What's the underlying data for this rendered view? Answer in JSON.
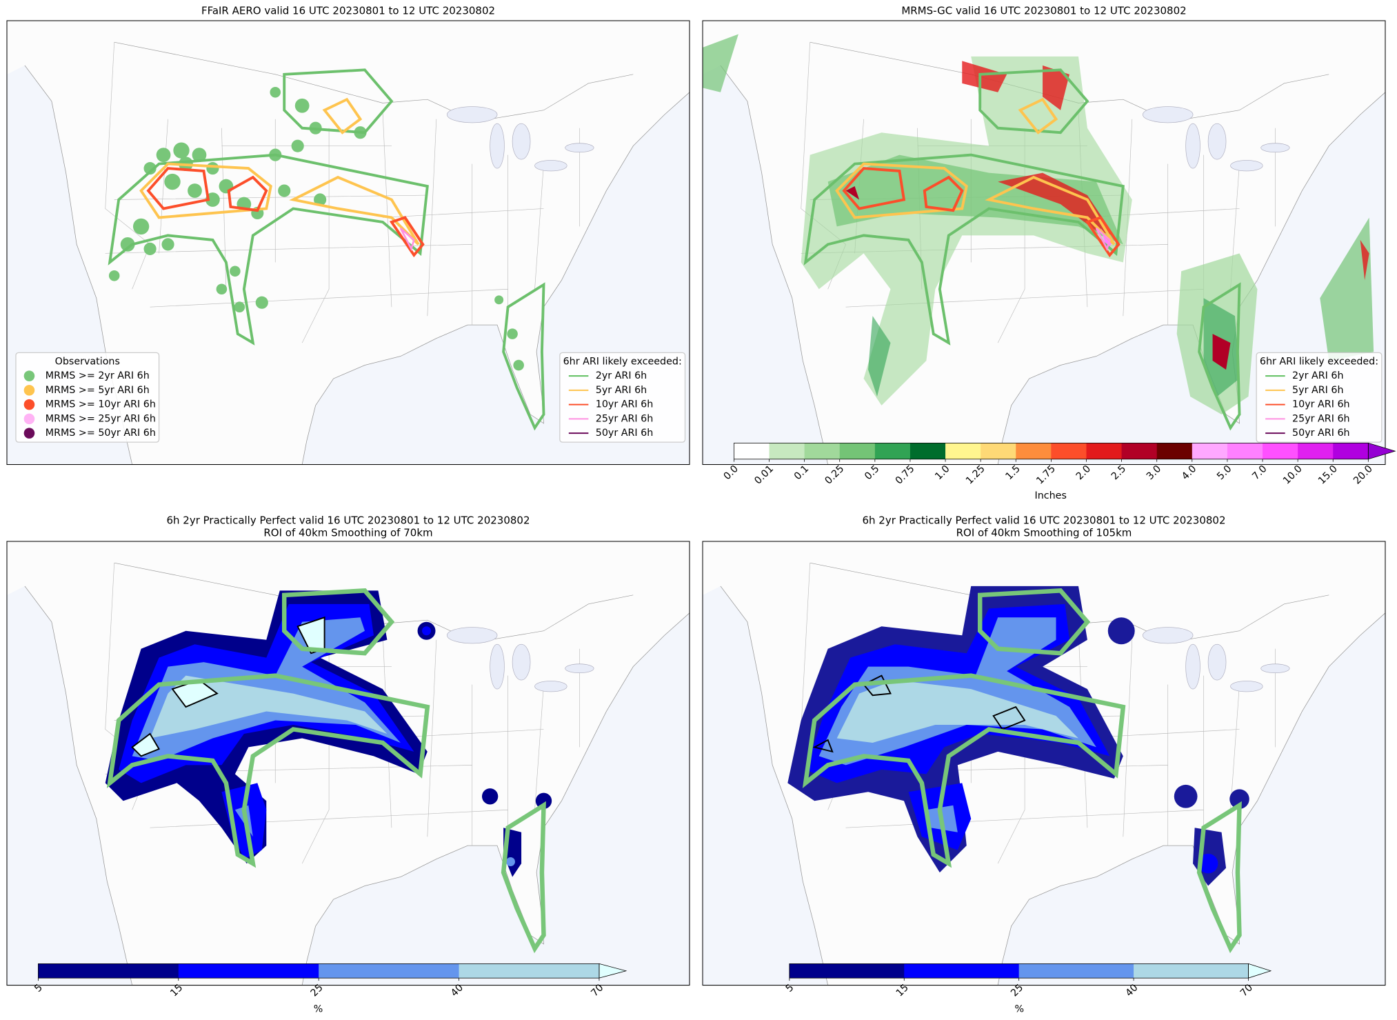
{
  "panels": [
    {
      "title": "FFaIR AERO valid 16 UTC 20230801 to 12 UTC 20230802",
      "observations_legend": {
        "title": "Observations",
        "items": [
          {
            "label": "MRMS >= 2yr ARI 6h",
            "color": "#78c679"
          },
          {
            "label": "MRMS >= 5yr ARI 6h",
            "color": "#fec44f"
          },
          {
            "label": "MRMS >= 10yr ARI 6h",
            "color": "#fc4e2a"
          },
          {
            "label": "MRMS >= 25yr ARI 6h",
            "color": "#ffb3f5"
          },
          {
            "label": "MRMS >= 50yr ARI 6h",
            "color": "#6a0a5a"
          }
        ]
      },
      "ari_legend": {
        "title": "6hr ARI likely exceeded:",
        "items": [
          {
            "label": "2yr ARI 6h",
            "color": "#5fbf5f"
          },
          {
            "label": "5yr ARI 6h",
            "color": "#fec44f"
          },
          {
            "label": "10yr ARI 6h",
            "color": "#fc4e2a"
          },
          {
            "label": "25yr ARI 6h",
            "color": "#ff8fe0"
          },
          {
            "label": "50yr ARI 6h",
            "color": "#6a0a5a"
          }
        ]
      }
    },
    {
      "title": "MRMS-GC valid 16 UTC 20230801 to 12 UTC 20230802",
      "ari_legend": {
        "title": "6hr ARI likely exceeded:",
        "items": [
          {
            "label": "2yr ARI 6h",
            "color": "#5fbf5f"
          },
          {
            "label": "5yr ARI 6h",
            "color": "#fec44f"
          },
          {
            "label": "10yr ARI 6h",
            "color": "#fc4e2a"
          },
          {
            "label": "25yr ARI 6h",
            "color": "#ff8fe0"
          },
          {
            "label": "50yr ARI 6h",
            "color": "#6a0a5a"
          }
        ]
      },
      "colorbar": {
        "label": "Inches",
        "ticks": [
          "0.0",
          "0.01",
          "0.1",
          "0.25",
          "0.5",
          "0.75",
          "1.0",
          "1.25",
          "1.5",
          "1.75",
          "2.0",
          "2.5",
          "3.0",
          "4.0",
          "5.0",
          "7.0",
          "10.0",
          "15.0",
          "20.0"
        ],
        "colors": [
          "#ffffff",
          "#c7e9c0",
          "#a1d99b",
          "#74c476",
          "#31a354",
          "#006d2c",
          "#fff68f",
          "#fed976",
          "#fd8d3c",
          "#fc4e2a",
          "#e31a1c",
          "#b10026",
          "#6b0000",
          "#ffa8ff",
          "#ff80ff",
          "#ff50ff",
          "#e020f0",
          "#b000e0"
        ],
        "extend_color": "#9400d3"
      }
    },
    {
      "title": "6h 2yr Practically Perfect valid 16 UTC 20230801 to 12 UTC 20230802",
      "subtitle": "ROI of 40km Smoothing of 70km",
      "colorbar": {
        "label": "%",
        "ticks": [
          "5",
          "15",
          "25",
          "40",
          "70"
        ],
        "colors": [
          "#00008b",
          "#0000ff",
          "#6495ed",
          "#add8e6"
        ],
        "extend_color": "#e0ffff"
      }
    },
    {
      "title": "6h 2yr Practically Perfect valid 16 UTC 20230801 to 12 UTC 20230802",
      "subtitle": "ROI of 40km Smoothing of 105km",
      "colorbar": {
        "label": "%",
        "ticks": [
          "5",
          "15",
          "25",
          "40",
          "70"
        ],
        "colors": [
          "#00008b",
          "#0000ff",
          "#6495ed",
          "#add8e6"
        ],
        "extend_color": "#e0ffff"
      }
    }
  ]
}
